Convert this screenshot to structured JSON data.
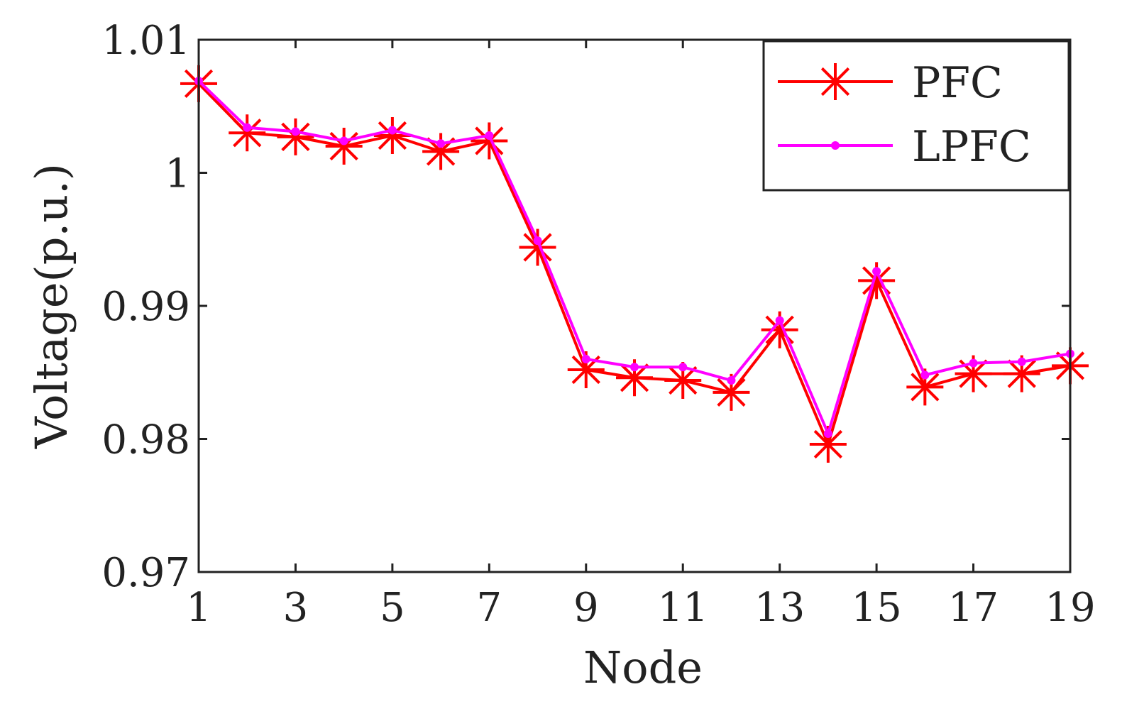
{
  "chart_data": {
    "type": "line",
    "title": "",
    "xlabel": "Node",
    "ylabel": "Voltage(p.u.)",
    "x": [
      1,
      2,
      3,
      4,
      5,
      6,
      7,
      8,
      9,
      10,
      11,
      12,
      13,
      14,
      15,
      16,
      17,
      18,
      19
    ],
    "xlim": [
      1,
      19
    ],
    "ylim": [
      0.97,
      1.01
    ],
    "xticks": [
      "1",
      "3",
      "5",
      "7",
      "9",
      "11",
      "13",
      "15",
      "17",
      "19"
    ],
    "yticks": [
      "0.97",
      "0.98",
      "0.99",
      "1",
      "1.01"
    ],
    "grid": false,
    "legend_position": "top-right",
    "series": [
      {
        "name": "PFC",
        "color": "#ff0000",
        "marker": "asterisk",
        "values": [
          1.0067,
          1.003,
          1.0027,
          1.002,
          1.0028,
          1.0016,
          1.0024,
          0.9944,
          0.9852,
          0.9846,
          0.9844,
          0.9835,
          0.9882,
          0.9796,
          0.9919,
          0.9839,
          0.9849,
          0.9849,
          0.9855
        ]
      },
      {
        "name": "LPFC",
        "color": "#ff00ff",
        "marker": "dot",
        "values": [
          1.0069,
          1.0034,
          1.0031,
          1.0024,
          1.0032,
          1.0022,
          1.0028,
          0.9949,
          0.986,
          0.9854,
          0.9854,
          0.9844,
          0.9889,
          0.9804,
          0.9926,
          0.9848,
          0.9857,
          0.9858,
          0.9864
        ]
      }
    ]
  }
}
